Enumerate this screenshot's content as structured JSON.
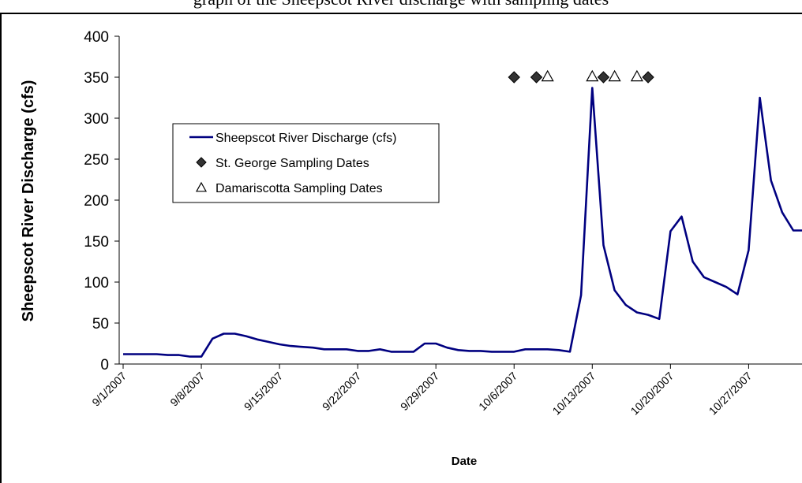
{
  "top_text": "graph of the Sheepscot River discharge with sampling dates",
  "chart_data": {
    "type": "line",
    "xlabel": "Date",
    "ylabel": "Sheepscot River Discharge (cfs)",
    "ylim": [
      0,
      400
    ],
    "yticks": [
      0,
      50,
      100,
      150,
      200,
      250,
      300,
      350,
      400
    ],
    "x_start": "9/1/2007",
    "xticks": [
      "9/1/2007",
      "9/8/2007",
      "9/15/2007",
      "9/22/2007",
      "9/29/2007",
      "10/6/2007",
      "10/13/2007",
      "10/20/2007",
      "10/27/2007"
    ],
    "grid": false,
    "legend_position": "upper-left inside plot",
    "colors": {
      "line": "#000080",
      "stgeorge_marker": "#333333",
      "damariscotta_marker": "#ffffff"
    },
    "series": [
      {
        "name": "Sheepscot River Discharge (cfs)",
        "kind": "line",
        "x": [
          "9/1/2007",
          "9/2/2007",
          "9/3/2007",
          "9/4/2007",
          "9/5/2007",
          "9/6/2007",
          "9/7/2007",
          "9/8/2007",
          "9/9/2007",
          "9/10/2007",
          "9/11/2007",
          "9/12/2007",
          "9/13/2007",
          "9/14/2007",
          "9/15/2007",
          "9/16/2007",
          "9/17/2007",
          "9/18/2007",
          "9/19/2007",
          "9/20/2007",
          "9/21/2007",
          "9/22/2007",
          "9/23/2007",
          "9/24/2007",
          "9/25/2007",
          "9/26/2007",
          "9/27/2007",
          "9/28/2007",
          "9/29/2007",
          "9/30/2007",
          "10/1/2007",
          "10/2/2007",
          "10/3/2007",
          "10/4/2007",
          "10/5/2007",
          "10/6/2007",
          "10/7/2007",
          "10/8/2007",
          "10/9/2007",
          "10/10/2007",
          "10/11/2007",
          "10/12/2007",
          "10/13/2007",
          "10/14/2007",
          "10/15/2007",
          "10/16/2007",
          "10/17/2007",
          "10/18/2007",
          "10/19/2007",
          "10/20/2007",
          "10/21/2007",
          "10/22/2007",
          "10/23/2007",
          "10/24/2007",
          "10/25/2007",
          "10/26/2007",
          "10/27/2007",
          "10/28/2007",
          "10/29/2007",
          "10/30/2007",
          "10/31/2007",
          "11/1/2007"
        ],
        "y": [
          12,
          12,
          12,
          12,
          11,
          11,
          9,
          9,
          31,
          37,
          37,
          34,
          30,
          27,
          24,
          22,
          21,
          20,
          18,
          18,
          18,
          16,
          16,
          18,
          15,
          15,
          15,
          25,
          25,
          20,
          17,
          16,
          16,
          15,
          15,
          15,
          18,
          18,
          18,
          17,
          15,
          84,
          337,
          145,
          90,
          72,
          63,
          60,
          55,
          162,
          180,
          125,
          106,
          100,
          94,
          85,
          139,
          325,
          224,
          185,
          163,
          163
        ]
      },
      {
        "name": "St. George Sampling Dates",
        "kind": "marker",
        "marker": "diamond",
        "x": [
          "10/6/2007",
          "10/8/2007",
          "10/14/2007",
          "10/18/2007"
        ],
        "y": [
          350,
          350,
          350,
          350
        ]
      },
      {
        "name": "Damariscotta Sampling Dates",
        "kind": "marker",
        "marker": "triangle",
        "x": [
          "10/9/2007",
          "10/13/2007",
          "10/15/2007",
          "10/17/2007"
        ],
        "y": [
          350,
          350,
          350,
          350
        ]
      }
    ]
  }
}
